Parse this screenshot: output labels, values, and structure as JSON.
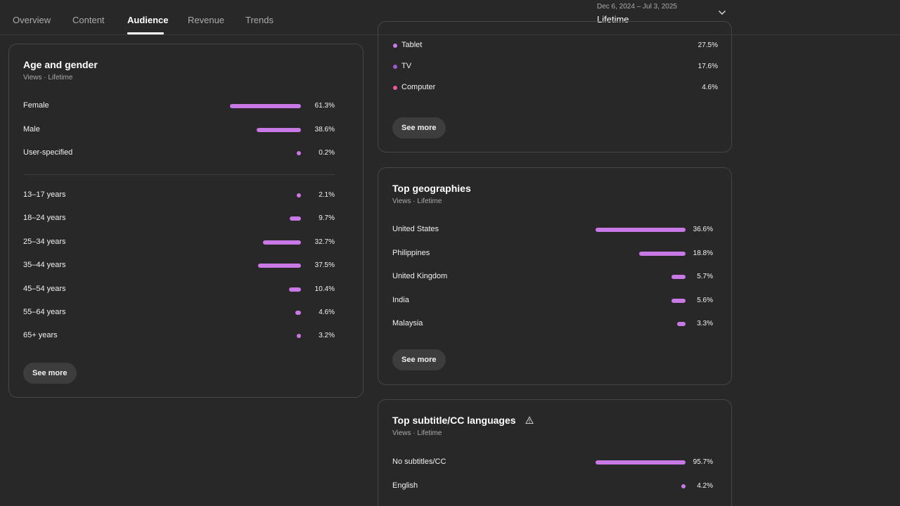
{
  "tabs": [
    {
      "label": "Overview"
    },
    {
      "label": "Content"
    },
    {
      "label": "Audience"
    },
    {
      "label": "Revenue"
    },
    {
      "label": "Trends"
    }
  ],
  "date_range": {
    "sub": "Dec 6, 2024 – Jul 3, 2025",
    "main": "Lifetime",
    "icon": "chevron-down-icon"
  },
  "age_gender": {
    "title": "Age and gender",
    "subtitle": "Views · Lifetime",
    "gender": [
      {
        "label": "Female",
        "value": "61.3%",
        "pct": 61.3
      },
      {
        "label": "Male",
        "value": "38.6%",
        "pct": 38.6
      },
      {
        "label": "User-specified",
        "value": "0.2%",
        "pct": 0.2
      }
    ],
    "ages": [
      {
        "label": "13–17 years",
        "value": "2.1%",
        "pct": 2.1
      },
      {
        "label": "18–24 years",
        "value": "9.7%",
        "pct": 9.7
      },
      {
        "label": "25–34 years",
        "value": "32.7%",
        "pct": 32.7
      },
      {
        "label": "35–44 years",
        "value": "37.5%",
        "pct": 37.5
      },
      {
        "label": "45–54 years",
        "value": "10.4%",
        "pct": 10.4
      },
      {
        "label": "55–64 years",
        "value": "4.6%",
        "pct": 4.6
      },
      {
        "label": "65+ years",
        "value": "3.2%",
        "pct": 3.2
      }
    ],
    "see_more": "See more"
  },
  "devices": {
    "items": [
      {
        "label": "Tablet",
        "value": "27.5%",
        "color": "#c879e6"
      },
      {
        "label": "TV",
        "value": "17.6%",
        "color": "#9b59d6"
      },
      {
        "label": "Computer",
        "value": "4.6%",
        "color": "#e85a9a"
      }
    ],
    "see_more": "See more"
  },
  "geographies": {
    "title": "Top geographies",
    "subtitle": "Views · Lifetime",
    "items": [
      {
        "label": "United States",
        "value": "36.6%",
        "pct": 36.6
      },
      {
        "label": "Philippines",
        "value": "18.8%",
        "pct": 18.8
      },
      {
        "label": "United Kingdom",
        "value": "5.7%",
        "pct": 5.7
      },
      {
        "label": "India",
        "value": "5.6%",
        "pct": 5.6
      },
      {
        "label": "Malaysia",
        "value": "3.3%",
        "pct": 3.3
      }
    ],
    "see_more": "See more"
  },
  "subtitles": {
    "title": "Top subtitle/CC languages",
    "subtitle": "Views · Lifetime",
    "warning_icon": "warning-icon",
    "items": [
      {
        "label": "No subtitles/CC",
        "value": "95.7%",
        "pct": 95.7
      },
      {
        "label": "English",
        "value": "4.2%",
        "pct": 4.2
      }
    ]
  },
  "colors": {
    "bar": "#c879e6",
    "background": "#282828",
    "card_border": "#454545"
  }
}
